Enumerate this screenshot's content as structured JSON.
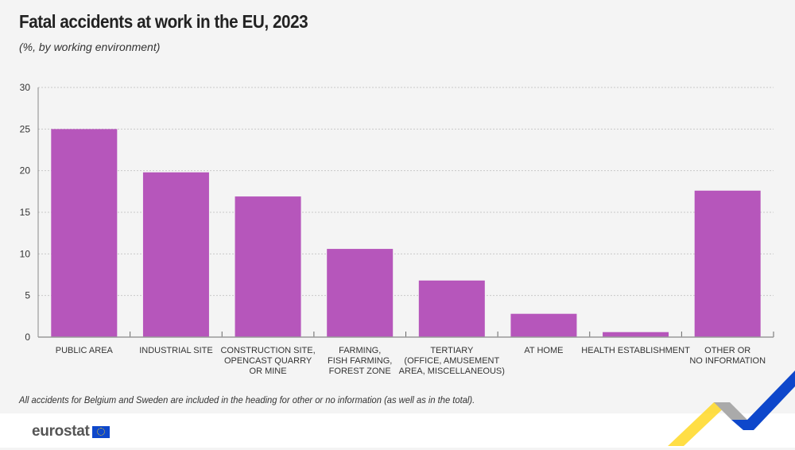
{
  "title": "Fatal accidents at work in the EU, 2023",
  "subtitle": "(%, by working environment)",
  "note": "All accidents for Belgium and Sweden are included in the heading for other or no information (as well as in the total).",
  "logo": "eurostat",
  "chart_data": {
    "type": "bar",
    "categories": [
      [
        "PUBLIC AREA"
      ],
      [
        "INDUSTRIAL SITE"
      ],
      [
        "CONSTRUCTION SITE,",
        "OPENCAST QUARRY",
        "OR MINE"
      ],
      [
        "FARMING,",
        "FISH FARMING,",
        "FOREST ZONE"
      ],
      [
        "TERTIARY",
        "(OFFICE, AMUSEMENT",
        "AREA, MISCELLANEOUS)"
      ],
      [
        "AT HOME"
      ],
      [
        "HEALTH ESTABLISHMENT"
      ],
      [
        "OTHER OR",
        "NO INFORMATION"
      ]
    ],
    "values": [
      25.0,
      19.8,
      16.9,
      10.6,
      6.8,
      2.8,
      0.6,
      17.6
    ],
    "ylim": [
      0,
      30
    ],
    "yticks": [
      0,
      5,
      10,
      15,
      20,
      25,
      30
    ],
    "grid": true,
    "bar_color": "#b656bb"
  }
}
